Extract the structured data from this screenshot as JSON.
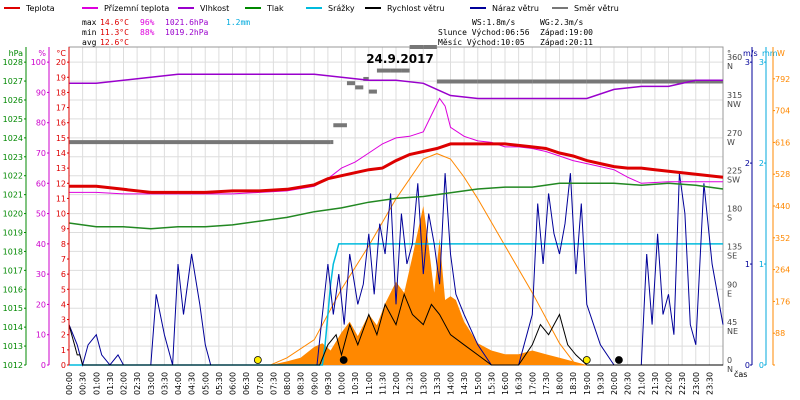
{
  "chart_data": {
    "type": "line",
    "title": "24.9.2017",
    "legend": [
      {
        "label": "Teplota",
        "color": "#dd0000"
      },
      {
        "label": "Přízemní teplota",
        "color": "#dd00dd"
      },
      {
        "label": "Vlhkost",
        "color": "#9900cc"
      },
      {
        "label": "Tlak",
        "color": "#008800"
      },
      {
        "label": "Srážky",
        "color": "#00bbdd"
      },
      {
        "label": "Rychlost větru",
        "color": "#000000"
      },
      {
        "label": "Náraz větru",
        "color": "#000099"
      },
      {
        "label": "Směr větru",
        "color": "#777777"
      }
    ],
    "stats": {
      "rows": [
        {
          "label": "max",
          "temp": "14.6°C",
          "hum": "96%",
          "press": "1021.6hPa",
          "rain": "1.2mm"
        },
        {
          "label": "min",
          "temp": "11.3°C",
          "hum": "88%",
          "press": "1019.2hPa",
          "rain": ""
        },
        {
          "label": "avg",
          "temp": "12.6°C",
          "hum": "",
          "press": "",
          "rain": ""
        }
      ],
      "ws": "WS:1.8m/s",
      "wg": "WG:2.3m/s",
      "slunce": "Slunce Východ:06:56",
      "slunce_zapad": "Západ:19:00",
      "mesic": "Měsíc  Východ:10:05",
      "mesic_zapad": "Západ:20:11"
    },
    "left_axes": {
      "pressure": {
        "unit": "hPa",
        "ticks": [
          "1012",
          "1013",
          "1014",
          "1015",
          "1016",
          "1017",
          "1018",
          "1019",
          "1020",
          "1021",
          "1022",
          "1023",
          "1024",
          "1025",
          "1026",
          "1027",
          "1028"
        ],
        "color": "#008800",
        "range": [
          1012,
          1028.8
        ]
      },
      "humidity": {
        "unit": "%",
        "ticks": [
          "0",
          "10",
          "20",
          "30",
          "40",
          "50",
          "60",
          "70",
          "80",
          "90",
          "100"
        ],
        "color": "#cc00cc",
        "range": [
          0,
          105
        ]
      },
      "temperature": {
        "unit": "°C",
        "ticks": [
          "0",
          "1",
          "2",
          "3",
          "4",
          "5",
          "6",
          "7",
          "8",
          "9",
          "10",
          "11",
          "12",
          "13",
          "14",
          "15",
          "16",
          "17",
          "18",
          "19",
          "20"
        ],
        "color": "#dd0000",
        "range": [
          0,
          21
        ]
      }
    },
    "right_axes": {
      "direction": {
        "unit": "°",
        "ticks": [
          {
            "v": "0",
            "d": "N"
          },
          {
            "v": "45",
            "d": "NE"
          },
          {
            "v": "90",
            "d": "E"
          },
          {
            "v": "135",
            "d": "SE"
          },
          {
            "v": "180",
            "d": "S"
          },
          {
            "v": "225",
            "d": "SW"
          },
          {
            "v": "270",
            "d": "W"
          },
          {
            "v": "315",
            "d": "NW"
          },
          {
            "v": "360",
            "d": "N"
          }
        ],
        "range": [
          0,
          378
        ]
      },
      "wind": {
        "unit": "m/s",
        "ticks": [
          "0",
          "1",
          "2",
          "3"
        ],
        "color": "#000099",
        "range": [
          0,
          3.15
        ]
      },
      "rain": {
        "unit": "mm",
        "ticks": [
          "0",
          "1",
          "2",
          "3"
        ],
        "color": "#00aadd",
        "range": [
          0,
          3.15
        ]
      },
      "solar": {
        "unit": "W",
        "ticks": [
          "0",
          "88",
          "176",
          "264",
          "352",
          "440",
          "528",
          "616",
          "704",
          "792"
        ],
        "color": "#ff8800",
        "range": [
          0,
          880
        ]
      }
    },
    "x_ticks": [
      "00:00",
      "00:30",
      "01:00",
      "01:30",
      "02:00",
      "02:30",
      "03:00",
      "03:30",
      "04:00",
      "04:30",
      "05:00",
      "05:30",
      "06:00",
      "06:30",
      "07:00",
      "07:30",
      "08:00",
      "08:30",
      "09:00",
      "09:30",
      "10:00",
      "10:30",
      "11:00",
      "11:30",
      "12:00",
      "12:30",
      "13:00",
      "13:30",
      "14:00",
      "14:30",
      "15:00",
      "15:30",
      "16:00",
      "16:30",
      "17:00",
      "17:30",
      "18:00",
      "18:30",
      "19:00",
      "19:30",
      "20:00",
      "20:30",
      "21:00",
      "21:30",
      "22:00",
      "22:30",
      "23:00",
      "23:30"
    ],
    "x_axis_label": "čas",
    "x_range_hours": [
      0,
      24
    ],
    "series": {
      "temperature": {
        "name": "Teplota",
        "x": [
          0,
          1,
          2,
          3,
          4,
          5,
          6,
          7,
          8,
          9,
          9.5,
          10,
          10.5,
          11,
          11.5,
          12,
          12.5,
          13,
          13.5,
          14,
          14.5,
          15,
          15.5,
          16,
          16.5,
          17,
          17.5,
          18,
          18.5,
          19,
          19.5,
          20,
          20.5,
          21,
          21.5,
          22,
          22.5,
          23,
          23.5,
          24
        ],
        "y": [
          11.8,
          11.8,
          11.6,
          11.4,
          11.4,
          11.4,
          11.5,
          11.5,
          11.6,
          11.9,
          12.3,
          12.5,
          12.7,
          12.9,
          13.0,
          13.5,
          13.9,
          14.1,
          14.3,
          14.6,
          14.6,
          14.6,
          14.6,
          14.6,
          14.5,
          14.4,
          14.3,
          14.0,
          13.8,
          13.5,
          13.3,
          13.1,
          13.0,
          13.0,
          12.9,
          12.8,
          12.7,
          12.6,
          12.5,
          12.4
        ]
      },
      "dew_point": {
        "name": "Přízemní teplota",
        "x": [
          0,
          1,
          2,
          3,
          4,
          5,
          6,
          7,
          8,
          9,
          9.5,
          10,
          10.5,
          11,
          11.5,
          12,
          12.5,
          13,
          13.3,
          13.6,
          13.8,
          14,
          14.5,
          15,
          15.5,
          16,
          16.5,
          17,
          17.5,
          18,
          18.5,
          19,
          19.5,
          20,
          20.5,
          21,
          22,
          23,
          24
        ],
        "y": [
          11.4,
          11.4,
          11.3,
          11.3,
          11.3,
          11.3,
          11.3,
          11.4,
          11.5,
          11.8,
          12.3,
          13.0,
          13.4,
          14.0,
          14.6,
          15.0,
          15.1,
          15.4,
          16.5,
          17.6,
          17.1,
          15.7,
          15.1,
          14.8,
          14.7,
          14.4,
          14.4,
          14.3,
          14.1,
          13.8,
          13.5,
          13.3,
          13.1,
          12.9,
          12.4,
          12.0,
          12.1,
          12.1,
          12.1
        ]
      },
      "humidity": {
        "name": "Vlhkost",
        "x": [
          0,
          1,
          2,
          3,
          4,
          5,
          6,
          7,
          8,
          9,
          10,
          11,
          12,
          13,
          13.5,
          14,
          15,
          16,
          17,
          18,
          19,
          20,
          21,
          22,
          23,
          24
        ],
        "y": [
          93,
          93,
          94,
          95,
          96,
          96,
          96,
          96,
          96,
          96,
          95,
          94,
          94,
          93,
          91,
          89,
          88,
          88,
          88,
          88,
          88,
          91,
          92,
          92,
          94,
          94
        ]
      },
      "pressure": {
        "name": "Tlak",
        "x": [
          0,
          1,
          2,
          3,
          4,
          5,
          6,
          7,
          8,
          9,
          10,
          11,
          12,
          13,
          14,
          15,
          16,
          17,
          18,
          19,
          20,
          21,
          22,
          23,
          24
        ],
        "y": [
          1019.5,
          1019.3,
          1019.3,
          1019.2,
          1019.3,
          1019.3,
          1019.4,
          1019.6,
          1019.8,
          1020.1,
          1020.3,
          1020.6,
          1020.8,
          1020.9,
          1021.1,
          1021.3,
          1021.4,
          1021.4,
          1021.6,
          1021.6,
          1021.6,
          1021.5,
          1021.6,
          1021.5,
          1021.3
        ]
      },
      "rain_cumulative": {
        "name": "Srážky",
        "x": [
          0,
          9.3,
          9.4,
          9.5,
          9.6,
          9.7,
          9.8,
          9.85,
          9.9,
          10.0,
          24
        ],
        "y": [
          0,
          0,
          0.2,
          0.5,
          0.8,
          1.0,
          1.1,
          1.15,
          1.2,
          1.2,
          1.2
        ]
      },
      "solar": {
        "name": "",
        "x": [
          0,
          7.4,
          8,
          9,
          10,
          11,
          12,
          13,
          13.5,
          14,
          14.5,
          15,
          16,
          17,
          18,
          18.6,
          24
        ],
        "y": [
          0,
          0,
          20,
          70,
          210,
          330,
          460,
          570,
          585,
          570,
          520,
          460,
          330,
          200,
          60,
          0,
          0
        ]
      },
      "solar_measured": {
        "name": "",
        "x": [
          0,
          7.4,
          8,
          8.5,
          9,
          9.3,
          9.6,
          10,
          10.3,
          10.6,
          11,
          11.3,
          11.6,
          12,
          12.3,
          12.6,
          13,
          13.2,
          13.4,
          13.6,
          13.8,
          14,
          14.2,
          14.5,
          15,
          15.5,
          16,
          16.5,
          17,
          17.5,
          18,
          18.5,
          19,
          24
        ],
        "y": [
          0,
          0,
          10,
          20,
          50,
          60,
          40,
          90,
          120,
          80,
          140,
          110,
          170,
          230,
          200,
          300,
          440,
          330,
          200,
          350,
          180,
          190,
          180,
          120,
          60,
          40,
          30,
          30,
          40,
          30,
          20,
          10,
          0,
          0
        ]
      },
      "wind_speed": {
        "name": "Rychlost větru",
        "x": [
          0,
          0.1,
          0.2,
          0.3,
          0.4,
          0.5,
          1,
          2,
          3,
          4,
          5,
          6,
          7,
          8,
          9,
          9.2,
          9.5,
          9.8,
          10,
          10.3,
          10.6,
          11,
          11.3,
          11.6,
          12,
          12.3,
          12.6,
          13,
          13.3,
          13.6,
          14,
          14.5,
          15,
          15.5,
          16,
          16.5,
          17,
          17.3,
          17.6,
          18,
          18.3,
          18.6,
          19,
          20,
          21,
          22,
          23,
          24
        ],
        "y": [
          0.4,
          0.3,
          0.2,
          0.1,
          0.1,
          0,
          0,
          0,
          0,
          0,
          0,
          0,
          0,
          0,
          0,
          0,
          0.2,
          0.3,
          0.1,
          0.4,
          0.2,
          0.5,
          0.3,
          0.6,
          0.4,
          0.7,
          0.5,
          0.4,
          0.6,
          0.5,
          0.3,
          0.2,
          0.1,
          0,
          0,
          0,
          0.2,
          0.4,
          0.3,
          0.5,
          0.2,
          0.1,
          0,
          0,
          0,
          0,
          0,
          0
        ]
      },
      "wind_gust": {
        "name": "Náraz větru",
        "x": [
          0,
          0.3,
          0.5,
          0.7,
          1.0,
          1.2,
          1.5,
          1.8,
          2,
          3,
          3.2,
          3.5,
          3.8,
          4,
          4.2,
          4.5,
          4.8,
          5,
          5.2,
          5.5,
          6,
          7,
          8,
          9,
          9.1,
          9.3,
          9.5,
          9.7,
          9.9,
          10.1,
          10.3,
          10.6,
          10.8,
          11.0,
          11.2,
          11.4,
          11.6,
          11.8,
          12,
          12.2,
          12.4,
          12.6,
          12.8,
          13,
          13.2,
          13.4,
          13.6,
          13.8,
          14,
          14.2,
          14.5,
          15,
          15.5,
          16,
          16.5,
          17,
          17.2,
          17.4,
          17.6,
          17.8,
          18,
          18.2,
          18.4,
          18.6,
          18.8,
          19,
          19.5,
          20,
          20.5,
          21,
          21.2,
          21.4,
          21.6,
          21.8,
          22,
          22.2,
          22.4,
          22.6,
          22.8,
          23,
          23.3,
          23.6,
          24
        ],
        "y": [
          0.4,
          0.2,
          0,
          0.2,
          0.3,
          0.1,
          0,
          0.1,
          0,
          0,
          0.7,
          0.3,
          0,
          1.0,
          0.5,
          1.1,
          0.6,
          0.2,
          0,
          0,
          0,
          0,
          0,
          0,
          0,
          0.5,
          1.0,
          0.5,
          0.9,
          0.4,
          1.1,
          0.6,
          0.8,
          1.3,
          0.7,
          1.4,
          1.1,
          1.7,
          0.6,
          1.5,
          1.0,
          1.2,
          1.8,
          0.9,
          1.5,
          1.2,
          0.8,
          1.9,
          1.1,
          0.7,
          0.5,
          0.2,
          0,
          0,
          0,
          0.5,
          1.6,
          1.0,
          1.7,
          1.3,
          1.1,
          1.4,
          1.9,
          0.9,
          1.6,
          0.6,
          0.2,
          0,
          0,
          0,
          1.1,
          0.4,
          1.3,
          0.5,
          0.7,
          0.3,
          1.9,
          1.5,
          0.4,
          0.2,
          1.8,
          1.0,
          0.4
        ]
      },
      "wind_direction": {
        "name": "Směr větru",
        "x": [
          0,
          9.6,
          9.7,
          10.2,
          10.5,
          10.8,
          11.0,
          11.3,
          11.8,
          12.2,
          12.5,
          13.0,
          13.5,
          14.0,
          15,
          16,
          17,
          18,
          19,
          20,
          21,
          22,
          23,
          24
        ],
        "y": [
          265,
          265,
          285,
          335,
          330,
          340,
          325,
          350,
          350,
          350,
          378,
          378,
          337,
          337,
          337,
          337,
          337,
          337,
          337,
          337,
          337,
          337,
          337,
          337
        ]
      },
      "markers": [
        {
          "kind": "sunrise",
          "x": 6.93,
          "color": "#ffee00"
        },
        {
          "kind": "sunset",
          "x": 19.0,
          "color": "#ffee00"
        },
        {
          "kind": "moonrise",
          "x": 10.08,
          "color": "#000000"
        },
        {
          "kind": "moonset",
          "x": 20.18,
          "color": "#000000"
        }
      ]
    },
    "grid": true
  }
}
